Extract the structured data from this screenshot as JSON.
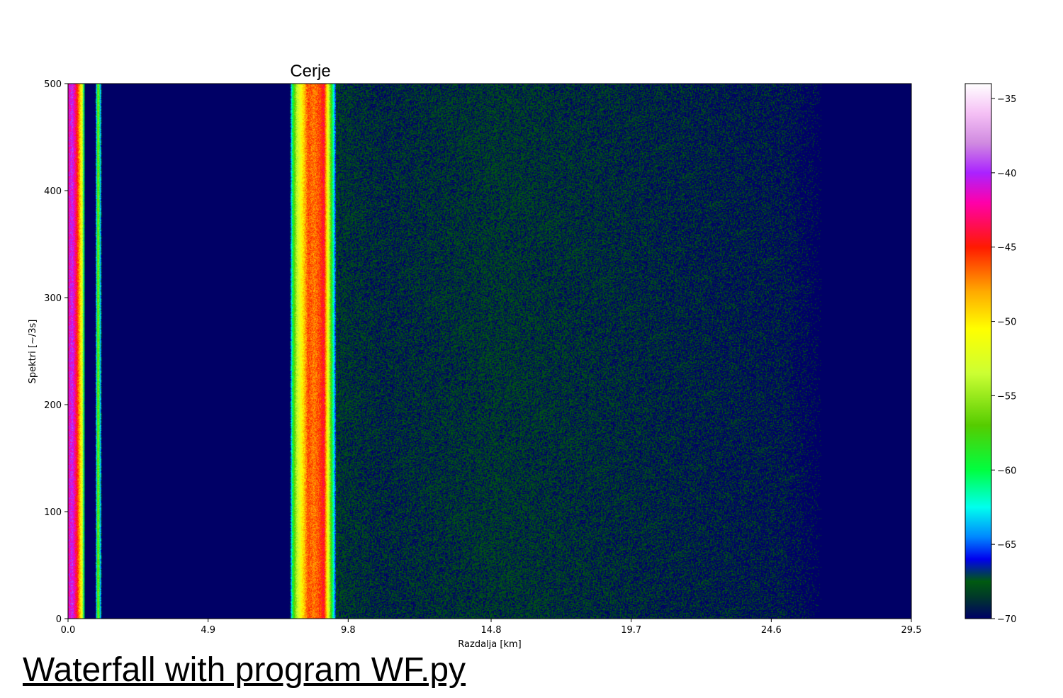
{
  "chart_data": {
    "type": "heatmap",
    "title": "Cerje",
    "xlabel": "Razdalja [km]",
    "ylabel": "Spektri [~/3s]",
    "xlim": [
      0.0,
      29.5
    ],
    "ylim": [
      0,
      500
    ],
    "x_ticks": [
      "0.0",
      "4.9",
      "9.8",
      "14.8",
      "19.7",
      "24.6",
      "29.5"
    ],
    "x_tick_values": [
      0.0,
      4.9,
      9.8,
      14.8,
      19.7,
      24.6,
      29.5
    ],
    "y_ticks": [
      "0",
      "100",
      "200",
      "300",
      "400",
      "500"
    ],
    "y_tick_values": [
      0,
      100,
      200,
      300,
      400,
      500
    ],
    "colorbar": {
      "range": [
        -70,
        -34
      ],
      "ticks": [
        "−35",
        "−40",
        "−45",
        "−50",
        "−55",
        "−60",
        "−65",
        "−70"
      ],
      "tick_values": [
        -35,
        -40,
        -45,
        -50,
        -55,
        -60,
        -65,
        -70
      ],
      "colormap": [
        {
          "value": -70,
          "color": "#000066"
        },
        {
          "value": -68.5,
          "color": "#003a28"
        },
        {
          "value": -67.5,
          "color": "#005a10"
        },
        {
          "value": -66,
          "color": "#0000ee"
        },
        {
          "value": -64.5,
          "color": "#0088ff"
        },
        {
          "value": -62.5,
          "color": "#00ffee"
        },
        {
          "value": -60,
          "color": "#00ff40"
        },
        {
          "value": -57,
          "color": "#55cc00"
        },
        {
          "value": -53.5,
          "color": "#ccff33"
        },
        {
          "value": -50.5,
          "color": "#ffff00"
        },
        {
          "value": -48,
          "color": "#ffaa00"
        },
        {
          "value": -45,
          "color": "#ff1a00"
        },
        {
          "value": -42,
          "color": "#ff00aa"
        },
        {
          "value": -40,
          "color": "#aa22ff"
        },
        {
          "value": -38,
          "color": "#d08ae0"
        },
        {
          "value": -36,
          "color": "#f5c0f5"
        },
        {
          "value": -34,
          "color": "#ffffff"
        }
      ]
    },
    "range_profile": [
      {
        "km": 0.0,
        "level": -42
      },
      {
        "km": 0.15,
        "level": -40
      },
      {
        "km": 0.3,
        "level": -44
      },
      {
        "km": 0.5,
        "level": -52
      },
      {
        "km": 0.6,
        "level": -70
      },
      {
        "km": 0.95,
        "level": -70
      },
      {
        "km": 1.05,
        "level": -55
      },
      {
        "km": 1.2,
        "level": -70
      },
      {
        "km": 7.75,
        "level": -70
      },
      {
        "km": 7.85,
        "level": -60
      },
      {
        "km": 8.0,
        "level": -54
      },
      {
        "km": 8.2,
        "level": -50
      },
      {
        "km": 8.4,
        "level": -46
      },
      {
        "km": 8.6,
        "level": -47
      },
      {
        "km": 8.8,
        "level": -46
      },
      {
        "km": 8.95,
        "level": -44
      },
      {
        "km": 9.1,
        "level": -52
      },
      {
        "km": 9.25,
        "level": -60
      },
      {
        "km": 9.4,
        "level": -68
      },
      {
        "km": 11.0,
        "level": -68.5
      },
      {
        "km": 15.0,
        "level": -68
      },
      {
        "km": 20.0,
        "level": -68.5
      },
      {
        "km": 25.0,
        "level": -69
      },
      {
        "km": 26.5,
        "level": -70
      },
      {
        "km": 29.5,
        "level": -70
      }
    ]
  },
  "caption": "Waterfall with program WF.py"
}
